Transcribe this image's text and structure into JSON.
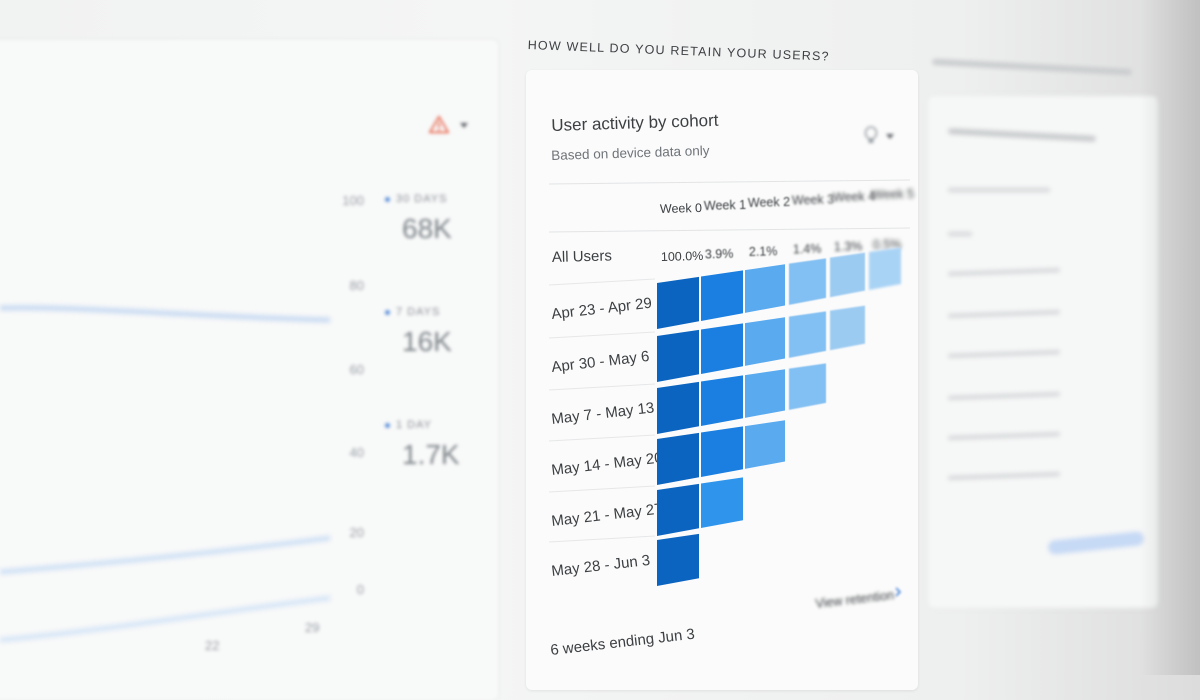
{
  "section_heading": "HOW WELL DO YOU RETAIN YOUR USERS?",
  "left_panel": {
    "y_axis_labels": [
      "100",
      "80",
      "60",
      "40",
      "20",
      "0"
    ],
    "x_axis_labels": [
      "22",
      "29"
    ],
    "stats": [
      {
        "label": "30 DAYS",
        "value": "68K"
      },
      {
        "label": "7 DAYS",
        "value": "16K"
      },
      {
        "label": "1 DAY",
        "value": "1.7K"
      }
    ],
    "alert_icon": "warning-triangle-icon"
  },
  "cohort_card": {
    "title": "User activity by cohort",
    "subtitle": "Based on device data only",
    "menu_icon": "lightbulb-icon",
    "weeks": [
      "Week 0",
      "Week 1",
      "Week 2",
      "Week 3",
      "Week 4",
      "Week 5"
    ],
    "all_users_label": "All Users",
    "all_users_pcts": [
      "100.0%",
      "3.9%",
      "2.1%",
      "1.4%",
      "1.3%",
      "0.5%"
    ],
    "cohorts": [
      {
        "label": "Apr 23 - Apr 29",
        "cells": 6
      },
      {
        "label": "Apr 30 - May 6",
        "cells": 5
      },
      {
        "label": "May 7 - May 13",
        "cells": 4
      },
      {
        "label": "May 14 - May 20",
        "cells": 3
      },
      {
        "label": "May 21 - May 27",
        "cells": 2
      },
      {
        "label": "May 28 - Jun 3",
        "cells": 1
      }
    ],
    "footer_range": "6 weeks ending Jun 3",
    "footer_link": "View retention",
    "colors": {
      "week0": "#0b64c0",
      "week1": "#1a7fe0",
      "week2": "#5aaaf0",
      "week3": "#82bff2",
      "week4": "#9ccbf2",
      "week5": "#a9d3f5",
      "week1_light": "#2f95ec"
    }
  }
}
